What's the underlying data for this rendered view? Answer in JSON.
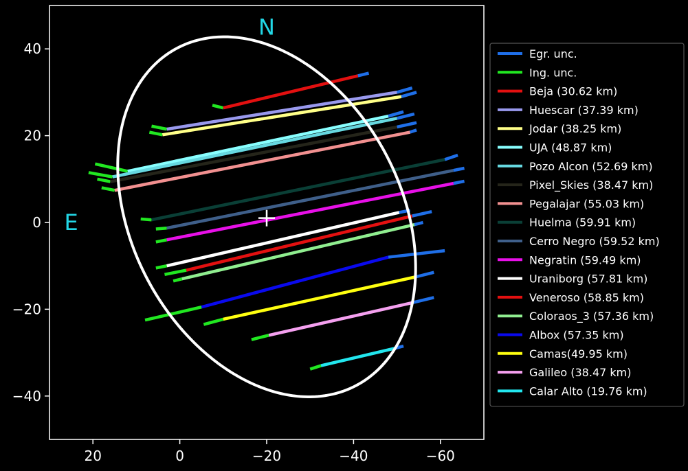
{
  "chart_data": {
    "type": "line",
    "title": "",
    "xlabel": "",
    "ylabel": "",
    "xlim": [
      30,
      -70
    ],
    "ylim": [
      -50,
      50
    ],
    "xticks": [
      20,
      0,
      -20,
      -40,
      -60
    ],
    "yticks": [
      40,
      20,
      0,
      -20,
      -40
    ],
    "xtick_labels": [
      "20",
      "0",
      "−20",
      "−40",
      "−60"
    ],
    "ytick_labels": [
      "40",
      "20",
      "0",
      "−20",
      "−40"
    ],
    "grid": false,
    "legend_placement": "right",
    "background": "#000000",
    "annotations": [
      {
        "text": "N",
        "x": -20,
        "y": 45
      },
      {
        "text": "E",
        "x": 25,
        "y": 0
      }
    ],
    "center_marker": {
      "x": -20,
      "y": 1
    },
    "ellipse": {
      "center_x": -20,
      "center_y": 1.3,
      "semi_major": 44,
      "semi_minor": 31,
      "rotation_deg": 62
    },
    "legend": [
      {
        "label": "Egr. unc.",
        "color": "#1f6fe8"
      },
      {
        "label": "Ing. unc.",
        "color": "#21e821"
      },
      {
        "label": "Beja (30.62 km)",
        "color": "#e31010"
      },
      {
        "label": "Huescar (37.39 km)",
        "color": "#9999ee"
      },
      {
        "label": "Jodar (38.25 km)",
        "color": "#ffff88"
      },
      {
        "label": "UJA (48.87 km)",
        "color": "#88ffff"
      },
      {
        "label": "Pozo Alcon (52.69 km)",
        "color": "#66d8e0"
      },
      {
        "label": "Pixel_Skies (38.47 km)",
        "color": "#25251a"
      },
      {
        "label": "Pegalajar (55.03 km)",
        "color": "#f29090"
      },
      {
        "label": "Huelma (59.91 km)",
        "color": "#0a3f36"
      },
      {
        "label": "Cerro Negro (59.52 km)",
        "color": "#3f5f8a"
      },
      {
        "label": "Negratin (59.49 km)",
        "color": "#e810e8"
      },
      {
        "label": "Uraniborg (57.81 km)",
        "color": "#ffffff"
      },
      {
        "label": "Veneroso (58.85 km)",
        "color": "#e31010"
      },
      {
        "label": "Coloraos_3 (57.36 km)",
        "color": "#90ee90"
      },
      {
        "label": "Albox (57.35 km)",
        "color": "#0a0aee"
      },
      {
        "label": "Camas(49.95 km)",
        "color": "#ffff10"
      },
      {
        "label": "Galileo (38.47 km)",
        "color": "#f5a0f0"
      },
      {
        "label": "Calar Alto (19.76 km)",
        "color": "#22e6ee"
      }
    ],
    "series": [
      {
        "name": "Beja (30.62 km)",
        "color": "#e31010",
        "ing": [
          [
            -7.5,
            27.0
          ],
          [
            -10.0,
            26.4
          ]
        ],
        "chord": [
          [
            -10.0,
            26.4
          ],
          [
            -41.0,
            33.8
          ]
        ],
        "egr": [
          [
            -41.0,
            33.8
          ],
          [
            -43.5,
            34.4
          ]
        ]
      },
      {
        "name": "Huescar (37.39 km)",
        "color": "#9999ee",
        "ing": [
          [
            6.5,
            22.2
          ],
          [
            3.0,
            21.5
          ]
        ],
        "chord": [
          [
            3.0,
            21.5
          ],
          [
            -50.0,
            30.0
          ]
        ],
        "egr": [
          [
            -50.0,
            30.0
          ],
          [
            -53.5,
            31.0
          ]
        ]
      },
      {
        "name": "Jodar (38.25 km)",
        "color": "#ffff88",
        "ing": [
          [
            7.0,
            20.8
          ],
          [
            4.0,
            20.2
          ]
        ],
        "chord": [
          [
            4.0,
            20.2
          ],
          [
            -51.0,
            29.0
          ]
        ],
        "egr": [
          [
            -51.0,
            29.0
          ],
          [
            -54.5,
            30.0
          ]
        ]
      },
      {
        "name": "UJA (48.87 km)",
        "color": "#88ffff",
        "ing": [
          [
            19.5,
            13.5
          ],
          [
            12.0,
            11.8
          ]
        ],
        "chord": [
          [
            12.0,
            11.8
          ],
          [
            -48.0,
            24.5
          ]
        ],
        "egr": [
          [
            -48.0,
            24.5
          ],
          [
            -51.5,
            25.5
          ]
        ]
      },
      {
        "name": "Pozo Alcon (52.69 km)",
        "color": "#66d8e0",
        "ing": [
          [
            21.0,
            11.5
          ],
          [
            15.5,
            10.5
          ]
        ],
        "chord": [
          [
            15.5,
            10.5
          ],
          [
            -50.0,
            24.0
          ]
        ],
        "egr": [
          [
            -50.0,
            24.0
          ],
          [
            -54.0,
            25.0
          ]
        ]
      },
      {
        "name": "Pixel_Skies (38.47 km)",
        "color": "#25251a",
        "ing": [
          [
            19.0,
            10.0
          ],
          [
            16.0,
            9.4
          ]
        ],
        "chord": [
          [
            16.0,
            9.4
          ],
          [
            -50.0,
            22.0
          ]
        ],
        "egr": [
          [
            -50.0,
            22.0
          ],
          [
            -54.5,
            23.0
          ]
        ]
      },
      {
        "name": "Pegalajar (55.03 km)",
        "color": "#f29090",
        "ing": [
          [
            18.0,
            8.0
          ],
          [
            15.0,
            7.4
          ]
        ],
        "chord": [
          [
            15.0,
            7.4
          ],
          [
            -53.0,
            20.8
          ]
        ],
        "egr": [
          [
            -53.0,
            20.8
          ],
          [
            -54.5,
            21.3
          ]
        ]
      },
      {
        "name": "Huelma (59.91 km)",
        "color": "#0a3f36",
        "ing": [
          [
            9.0,
            0.8
          ],
          [
            6.5,
            0.6
          ]
        ],
        "chord": [
          [
            6.5,
            0.6
          ],
          [
            -61.0,
            14.5
          ]
        ],
        "egr": [
          [
            -61.0,
            14.5
          ],
          [
            -64.0,
            15.5
          ]
        ]
      },
      {
        "name": "Cerro Negro (59.52 km)",
        "color": "#3f5f8a",
        "ing": [
          [
            5.5,
            -1.5
          ],
          [
            3.0,
            -1.3
          ]
        ],
        "chord": [
          [
            3.0,
            -1.3
          ],
          [
            -63.0,
            12.0
          ]
        ],
        "egr": [
          [
            -63.0,
            12.0
          ],
          [
            -65.5,
            12.5
          ]
        ]
      },
      {
        "name": "Negratin (59.49 km)",
        "color": "#e810e8",
        "ing": [
          [
            5.5,
            -4.5
          ],
          [
            3.0,
            -4.0
          ]
        ],
        "chord": [
          [
            3.0,
            -4.0
          ],
          [
            -63.0,
            9.0
          ]
        ],
        "egr": [
          [
            -63.0,
            9.0
          ],
          [
            -65.5,
            9.5
          ]
        ]
      },
      {
        "name": "Uraniborg (57.81 km)",
        "color": "#ffffff",
        "ing": [
          [
            5.5,
            -10.5
          ],
          [
            3.0,
            -10.0
          ]
        ],
        "chord": [
          [
            3.0,
            -10.0
          ],
          [
            -50.5,
            2.3
          ]
        ],
        "egr": [
          [
            -50.5,
            2.3
          ],
          [
            -53.0,
            2.8
          ]
        ]
      },
      {
        "name": "Veneroso (58.85 km)",
        "color": "#e31010",
        "ing": [
          [
            3.5,
            -12.0
          ],
          [
            -1.5,
            -11.0
          ]
        ],
        "chord": [
          [
            -1.5,
            -11.0
          ],
          [
            -53.5,
            1.5
          ]
        ],
        "egr": [
          [
            -53.5,
            1.5
          ],
          [
            -58.0,
            2.5
          ]
        ]
      },
      {
        "name": "Coloraos_3 (57.36 km)",
        "color": "#90ee90",
        "ing": [
          [
            1.5,
            -13.5
          ],
          [
            -0.5,
            -13.0
          ]
        ],
        "chord": [
          [
            -0.5,
            -13.0
          ],
          [
            -54.0,
            -0.5
          ]
        ],
        "egr": [
          [
            -54.0,
            -0.5
          ],
          [
            -56.0,
            0.0
          ]
        ]
      },
      {
        "name": "Albox (57.35 km)",
        "color": "#0a0aee",
        "ing": [
          [
            8.0,
            -22.5
          ],
          [
            -5.0,
            -19.5
          ]
        ],
        "chord": [
          [
            -5.0,
            -19.5
          ],
          [
            -48.0,
            -8.0
          ]
        ],
        "egr": [
          [
            -48.0,
            -8.0
          ],
          [
            -61.0,
            -6.5
          ]
        ]
      },
      {
        "name": "Camas(49.95 km)",
        "color": "#ffff10",
        "ing": [
          [
            -5.5,
            -23.5
          ],
          [
            -10.0,
            -22.3
          ]
        ],
        "chord": [
          [
            -10.0,
            -22.3
          ],
          [
            -54.5,
            -12.5
          ]
        ],
        "egr": [
          [
            -54.5,
            -12.5
          ],
          [
            -58.5,
            -11.5
          ]
        ]
      },
      {
        "name": "Galileo (38.47 km)",
        "color": "#f5a0f0",
        "ing": [
          [
            -16.5,
            -27.0
          ],
          [
            -20.5,
            -26.0
          ]
        ],
        "chord": [
          [
            -20.5,
            -26.0
          ],
          [
            -53.5,
            -18.5
          ]
        ],
        "egr": [
          [
            -53.5,
            -18.5
          ],
          [
            -58.5,
            -17.3
          ]
        ]
      },
      {
        "name": "Calar Alto (19.76 km)",
        "color": "#22e6ee",
        "ing": [
          [
            -30.0,
            -33.8
          ],
          [
            -32.5,
            -33.0
          ]
        ],
        "chord": [
          [
            -32.5,
            -33.0
          ],
          [
            -49.5,
            -29.0
          ]
        ],
        "egr": [
          [
            -49.5,
            -29.0
          ],
          [
            -51.5,
            -28.5
          ]
        ]
      }
    ]
  }
}
